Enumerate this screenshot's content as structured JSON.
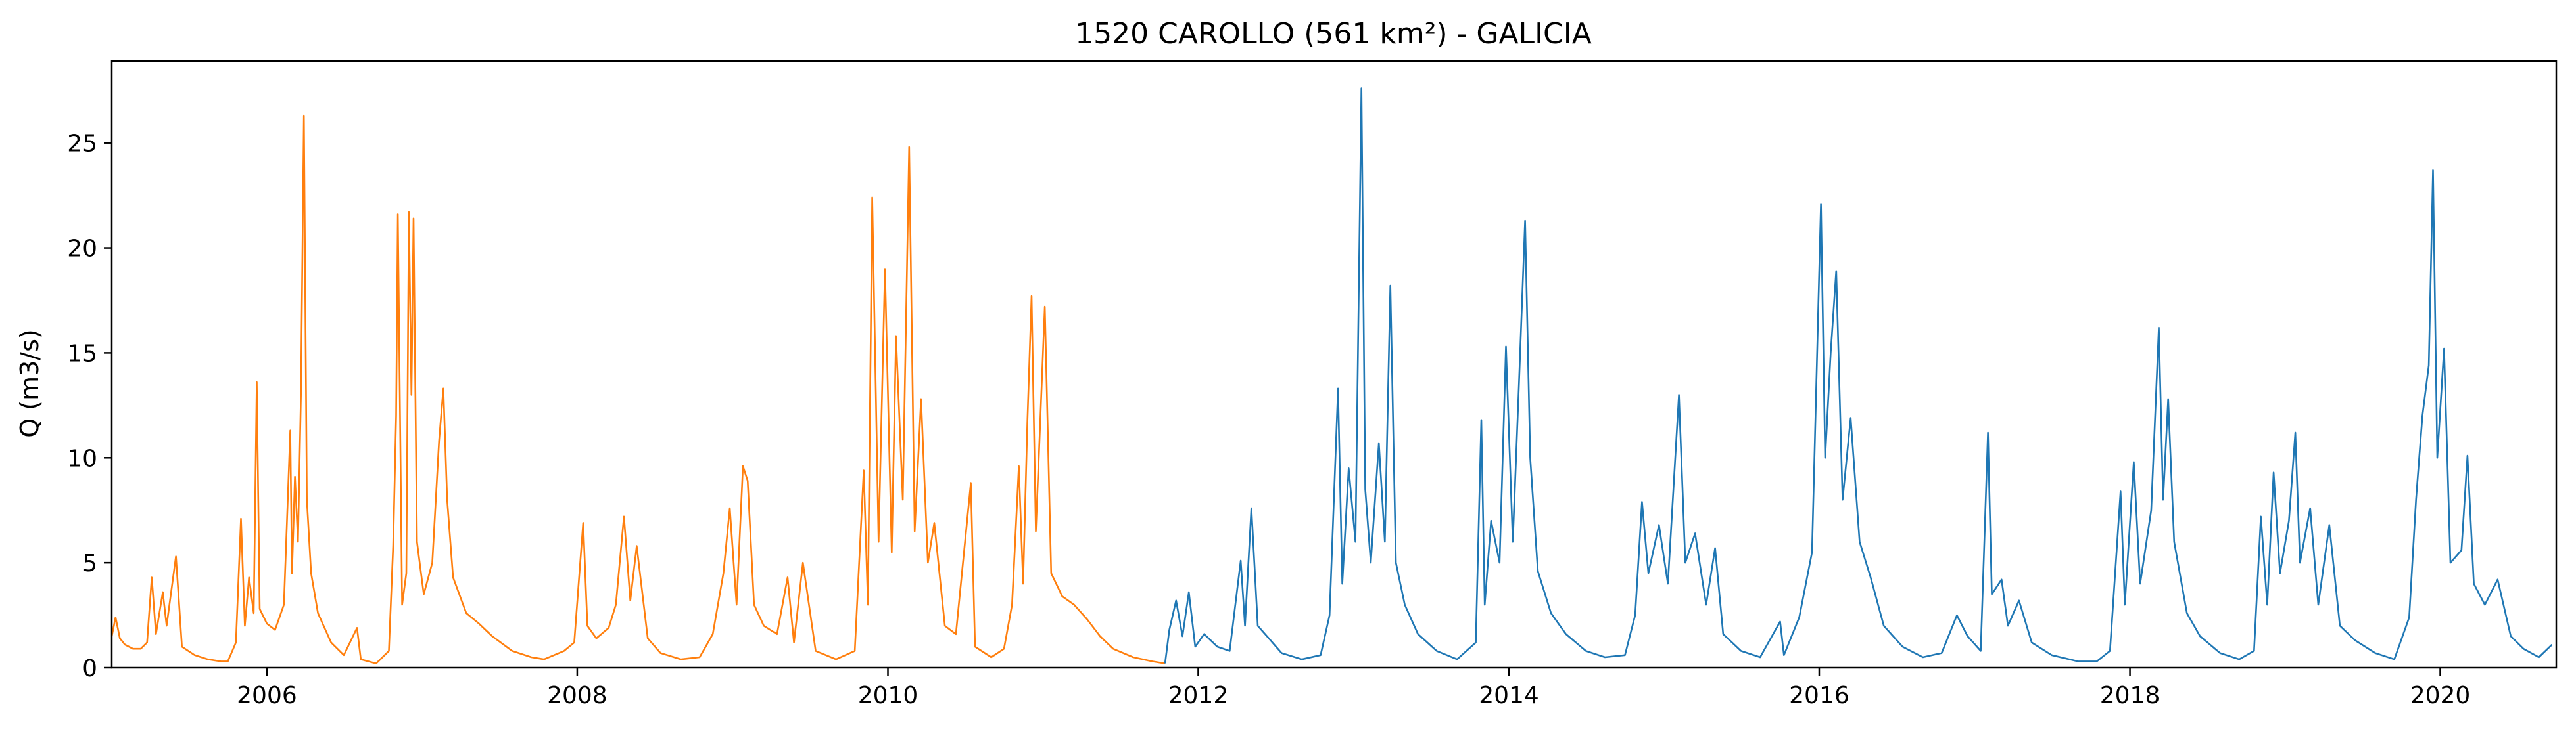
{
  "chart_data": {
    "type": "line",
    "title": "1520 CAROLLO (561 km²) - GALICIA",
    "xlabel": "",
    "ylabel": "Q (m3/s)",
    "xlim": [
      "2005-01-01",
      "2020-09-30"
    ],
    "ylim": [
      0,
      28.9
    ],
    "x_ticks": [
      "2006",
      "2008",
      "2010",
      "2012",
      "2014",
      "2016",
      "2018",
      "2020"
    ],
    "y_ticks": [
      0,
      5,
      10,
      15,
      20,
      25
    ],
    "grid": false,
    "legend": "none",
    "colors": {
      "series_1": "#ff7f0e",
      "series_2": "#1f77b4"
    },
    "series": [
      {
        "color": "#ff7f0e",
        "points": [
          [
            "2005-01-01",
            1.5
          ],
          [
            "2005-01-10",
            2.4
          ],
          [
            "2005-01-20",
            1.4
          ],
          [
            "2005-02-01",
            1.1
          ],
          [
            "2005-02-20",
            0.9
          ],
          [
            "2005-03-10",
            0.9
          ],
          [
            "2005-03-25",
            1.2
          ],
          [
            "2005-04-05",
            4.3
          ],
          [
            "2005-04-15",
            1.6
          ],
          [
            "2005-05-01",
            3.6
          ],
          [
            "2005-05-10",
            2.0
          ],
          [
            "2005-06-01",
            5.3
          ],
          [
            "2005-06-15",
            1.0
          ],
          [
            "2005-07-15",
            0.6
          ],
          [
            "2005-08-15",
            0.4
          ],
          [
            "2005-09-15",
            0.3
          ],
          [
            "2005-10-01",
            0.3
          ],
          [
            "2005-10-20",
            1.2
          ],
          [
            "2005-11-01",
            7.1
          ],
          [
            "2005-11-10",
            2.0
          ],
          [
            "2005-11-20",
            4.3
          ],
          [
            "2005-12-01",
            2.6
          ],
          [
            "2005-12-08",
            13.6
          ],
          [
            "2005-12-15",
            2.8
          ],
          [
            "2006-01-01",
            2.1
          ],
          [
            "2006-01-20",
            1.8
          ],
          [
            "2006-02-10",
            3.0
          ],
          [
            "2006-02-25",
            11.3
          ],
          [
            "2006-03-01",
            4.5
          ],
          [
            "2006-03-08",
            9.1
          ],
          [
            "2006-03-15",
            6.0
          ],
          [
            "2006-03-22",
            13.0
          ],
          [
            "2006-03-29",
            26.3
          ],
          [
            "2006-04-05",
            8.0
          ],
          [
            "2006-04-15",
            4.5
          ],
          [
            "2006-05-01",
            2.6
          ],
          [
            "2006-06-01",
            1.2
          ],
          [
            "2006-07-01",
            0.6
          ],
          [
            "2006-08-01",
            1.9
          ],
          [
            "2006-08-10",
            0.4
          ],
          [
            "2006-09-15",
            0.2
          ],
          [
            "2006-10-15",
            0.8
          ],
          [
            "2006-10-25",
            5.8
          ],
          [
            "2006-11-01",
            12.0
          ],
          [
            "2006-11-05",
            21.6
          ],
          [
            "2006-11-15",
            3.0
          ],
          [
            "2006-11-25",
            4.5
          ],
          [
            "2006-12-01",
            21.7
          ],
          [
            "2006-12-07",
            13.0
          ],
          [
            "2006-12-12",
            21.4
          ],
          [
            "2006-12-20",
            6.0
          ],
          [
            "2007-01-05",
            3.5
          ],
          [
            "2007-01-25",
            5.0
          ],
          [
            "2007-02-10",
            10.8
          ],
          [
            "2007-02-20",
            13.3
          ],
          [
            "2007-03-01",
            8.0
          ],
          [
            "2007-03-15",
            4.3
          ],
          [
            "2007-04-15",
            2.6
          ],
          [
            "2007-05-15",
            2.1
          ],
          [
            "2007-06-15",
            1.5
          ],
          [
            "2007-08-01",
            0.8
          ],
          [
            "2007-09-15",
            0.5
          ],
          [
            "2007-10-15",
            0.4
          ],
          [
            "2007-12-01",
            0.8
          ],
          [
            "2007-12-25",
            1.2
          ],
          [
            "2008-01-15",
            6.9
          ],
          [
            "2008-01-25",
            2.0
          ],
          [
            "2008-02-15",
            1.4
          ],
          [
            "2008-03-15",
            1.9
          ],
          [
            "2008-04-01",
            3.0
          ],
          [
            "2008-04-20",
            7.2
          ],
          [
            "2008-05-05",
            3.2
          ],
          [
            "2008-05-20",
            5.8
          ],
          [
            "2008-06-15",
            1.4
          ],
          [
            "2008-07-15",
            0.7
          ],
          [
            "2008-09-01",
            0.4
          ],
          [
            "2008-10-15",
            0.5
          ],
          [
            "2008-11-15",
            1.6
          ],
          [
            "2008-12-10",
            4.5
          ],
          [
            "2008-12-25",
            7.6
          ],
          [
            "2009-01-10",
            3.0
          ],
          [
            "2009-01-25",
            9.6
          ],
          [
            "2009-02-05",
            8.9
          ],
          [
            "2009-02-20",
            3.0
          ],
          [
            "2009-03-15",
            2.0
          ],
          [
            "2009-04-15",
            1.6
          ],
          [
            "2009-05-10",
            4.3
          ],
          [
            "2009-05-25",
            1.2
          ],
          [
            "2009-06-15",
            5.0
          ],
          [
            "2009-07-15",
            0.8
          ],
          [
            "2009-09-01",
            0.4
          ],
          [
            "2009-10-15",
            0.8
          ],
          [
            "2009-11-05",
            9.4
          ],
          [
            "2009-11-15",
            3.0
          ],
          [
            "2009-11-25",
            22.4
          ],
          [
            "2009-12-10",
            6.0
          ],
          [
            "2009-12-25",
            19.0
          ],
          [
            "2010-01-10",
            5.5
          ],
          [
            "2010-01-20",
            15.8
          ],
          [
            "2010-02-05",
            8.0
          ],
          [
            "2010-02-20",
            24.8
          ],
          [
            "2010-03-05",
            6.5
          ],
          [
            "2010-03-20",
            12.8
          ],
          [
            "2010-04-05",
            5.0
          ],
          [
            "2010-04-20",
            6.9
          ],
          [
            "2010-05-15",
            2.0
          ],
          [
            "2010-06-10",
            1.6
          ],
          [
            "2010-07-15",
            8.8
          ],
          [
            "2010-07-25",
            1.0
          ],
          [
            "2010-09-01",
            0.5
          ],
          [
            "2010-10-01",
            0.9
          ],
          [
            "2010-10-20",
            3.0
          ],
          [
            "2010-11-05",
            9.6
          ],
          [
            "2010-11-15",
            4.0
          ],
          [
            "2010-11-25",
            11.7
          ],
          [
            "2010-12-05",
            17.7
          ],
          [
            "2010-12-15",
            6.5
          ],
          [
            "2011-01-05",
            17.2
          ],
          [
            "2011-01-20",
            4.5
          ],
          [
            "2011-02-15",
            3.4
          ],
          [
            "2011-03-15",
            3.0
          ],
          [
            "2011-04-15",
            2.3
          ],
          [
            "2011-05-15",
            1.5
          ],
          [
            "2011-06-15",
            0.9
          ],
          [
            "2011-08-01",
            0.5
          ],
          [
            "2011-09-15",
            0.3
          ],
          [
            "2011-10-15",
            0.2
          ]
        ]
      },
      {
        "color": "#1f77b4",
        "points": [
          [
            "2011-10-15",
            0.2
          ],
          [
            "2011-10-25",
            1.8
          ],
          [
            "2011-11-10",
            3.2
          ],
          [
            "2011-11-25",
            1.5
          ],
          [
            "2011-12-10",
            3.6
          ],
          [
            "2011-12-25",
            1.0
          ],
          [
            "2012-01-15",
            1.6
          ],
          [
            "2012-02-15",
            1.0
          ],
          [
            "2012-03-15",
            0.8
          ],
          [
            "2012-04-10",
            5.1
          ],
          [
            "2012-04-20",
            2.0
          ],
          [
            "2012-05-05",
            7.6
          ],
          [
            "2012-05-20",
            2.0
          ],
          [
            "2012-06-15",
            1.4
          ],
          [
            "2012-07-15",
            0.7
          ],
          [
            "2012-09-01",
            0.4
          ],
          [
            "2012-10-15",
            0.6
          ],
          [
            "2012-11-05",
            2.5
          ],
          [
            "2012-11-25",
            13.3
          ],
          [
            "2012-12-05",
            4.0
          ],
          [
            "2012-12-20",
            9.5
          ],
          [
            "2013-01-05",
            6.0
          ],
          [
            "2013-01-19",
            27.6
          ],
          [
            "2013-01-28",
            8.5
          ],
          [
            "2013-02-10",
            5.0
          ],
          [
            "2013-03-01",
            10.7
          ],
          [
            "2013-03-15",
            6.0
          ],
          [
            "2013-03-28",
            18.2
          ],
          [
            "2013-04-10",
            5.0
          ],
          [
            "2013-05-01",
            3.0
          ],
          [
            "2013-06-01",
            1.6
          ],
          [
            "2013-07-15",
            0.8
          ],
          [
            "2013-09-01",
            0.4
          ],
          [
            "2013-10-15",
            1.2
          ],
          [
            "2013-10-28",
            11.8
          ],
          [
            "2013-11-05",
            3.0
          ],
          [
            "2013-11-20",
            7.0
          ],
          [
            "2013-12-10",
            5.0
          ],
          [
            "2013-12-25",
            15.3
          ],
          [
            "2014-01-10",
            6.0
          ],
          [
            "2014-01-25",
            13.7
          ],
          [
            "2014-02-08",
            21.3
          ],
          [
            "2014-02-20",
            10.0
          ],
          [
            "2014-03-10",
            4.6
          ],
          [
            "2014-04-10",
            2.6
          ],
          [
            "2014-05-15",
            1.6
          ],
          [
            "2014-07-01",
            0.8
          ],
          [
            "2014-08-15",
            0.5
          ],
          [
            "2014-10-01",
            0.6
          ],
          [
            "2014-10-25",
            2.5
          ],
          [
            "2014-11-10",
            7.9
          ],
          [
            "2014-11-25",
            4.5
          ],
          [
            "2014-12-20",
            6.8
          ],
          [
            "2015-01-10",
            4.0
          ],
          [
            "2015-02-05",
            13.0
          ],
          [
            "2015-02-20",
            5.0
          ],
          [
            "2015-03-15",
            6.4
          ],
          [
            "2015-04-10",
            3.0
          ],
          [
            "2015-05-01",
            5.7
          ],
          [
            "2015-05-20",
            1.6
          ],
          [
            "2015-07-01",
            0.8
          ],
          [
            "2015-08-15",
            0.5
          ],
          [
            "2015-10-01",
            2.2
          ],
          [
            "2015-10-10",
            0.6
          ],
          [
            "2015-11-15",
            2.4
          ],
          [
            "2015-12-15",
            5.5
          ],
          [
            "2016-01-05",
            22.1
          ],
          [
            "2016-01-15",
            10.0
          ],
          [
            "2016-01-28",
            15.0
          ],
          [
            "2016-02-10",
            18.9
          ],
          [
            "2016-02-25",
            8.0
          ],
          [
            "2016-03-15",
            11.9
          ],
          [
            "2016-04-05",
            6.0
          ],
          [
            "2016-05-01",
            4.3
          ],
          [
            "2016-06-01",
            2.0
          ],
          [
            "2016-07-15",
            1.0
          ],
          [
            "2016-09-01",
            0.5
          ],
          [
            "2016-10-15",
            0.7
          ],
          [
            "2016-11-20",
            2.5
          ],
          [
            "2016-12-15",
            1.5
          ],
          [
            "2017-01-15",
            0.8
          ],
          [
            "2017-02-01",
            11.2
          ],
          [
            "2017-02-10",
            3.5
          ],
          [
            "2017-03-05",
            4.2
          ],
          [
            "2017-03-20",
            2.0
          ],
          [
            "2017-04-15",
            3.2
          ],
          [
            "2017-05-15",
            1.2
          ],
          [
            "2017-07-01",
            0.6
          ],
          [
            "2017-09-01",
            0.3
          ],
          [
            "2017-10-15",
            0.3
          ],
          [
            "2017-11-15",
            0.8
          ],
          [
            "2017-12-10",
            8.4
          ],
          [
            "2017-12-20",
            3.0
          ],
          [
            "2018-01-10",
            9.8
          ],
          [
            "2018-01-25",
            4.0
          ],
          [
            "2018-02-20",
            7.5
          ],
          [
            "2018-03-10",
            16.2
          ],
          [
            "2018-03-20",
            8.0
          ],
          [
            "2018-04-01",
            12.8
          ],
          [
            "2018-04-15",
            6.0
          ],
          [
            "2018-05-15",
            2.6
          ],
          [
            "2018-06-15",
            1.5
          ],
          [
            "2018-08-01",
            0.7
          ],
          [
            "2018-09-15",
            0.4
          ],
          [
            "2018-10-20",
            0.8
          ],
          [
            "2018-11-05",
            7.2
          ],
          [
            "2018-11-20",
            3.0
          ],
          [
            "2018-12-05",
            9.3
          ],
          [
            "2018-12-20",
            4.5
          ],
          [
            "2019-01-10",
            7.0
          ],
          [
            "2019-01-25",
            11.2
          ],
          [
            "2019-02-05",
            5.0
          ],
          [
            "2019-03-01",
            7.6
          ],
          [
            "2019-03-20",
            3.0
          ],
          [
            "2019-04-15",
            6.8
          ],
          [
            "2019-05-10",
            2.0
          ],
          [
            "2019-06-15",
            1.3
          ],
          [
            "2019-08-01",
            0.7
          ],
          [
            "2019-09-15",
            0.4
          ],
          [
            "2019-10-20",
            2.4
          ],
          [
            "2019-11-05",
            8.0
          ],
          [
            "2019-11-20",
            12.0
          ],
          [
            "2019-12-05",
            14.4
          ],
          [
            "2019-12-15",
            23.7
          ],
          [
            "2019-12-25",
            10.0
          ],
          [
            "2020-01-10",
            15.2
          ],
          [
            "2020-01-25",
            5.0
          ],
          [
            "2020-02-20",
            5.6
          ],
          [
            "2020-03-05",
            10.1
          ],
          [
            "2020-03-20",
            4.0
          ],
          [
            "2020-04-15",
            3.0
          ],
          [
            "2020-05-15",
            4.2
          ],
          [
            "2020-06-15",
            1.5
          ],
          [
            "2020-07-15",
            0.9
          ],
          [
            "2020-08-20",
            0.5
          ],
          [
            "2020-09-20",
            1.1
          ]
        ]
      }
    ]
  }
}
